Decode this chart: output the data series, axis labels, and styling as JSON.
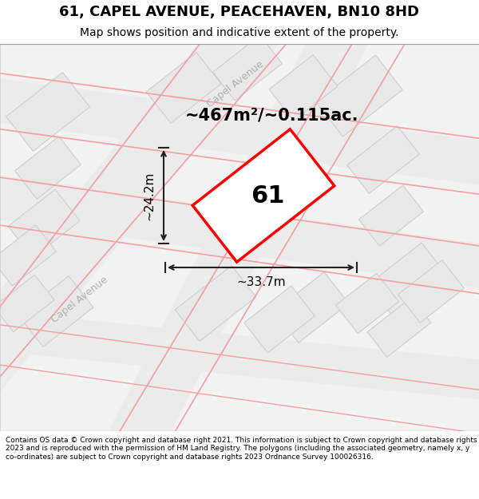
{
  "title": "61, CAPEL AVENUE, PEACEHAVEN, BN10 8HD",
  "subtitle": "Map shows position and indicative extent of the property.",
  "copyright": "Contains OS data © Crown copyright and database right 2021. This information is subject to Crown copyright and database rights 2023 and is reproduced with the permission of HM Land Registry. The polygons (including the associated geometry, namely x, y co-ordinates) are subject to Crown copyright and database rights 2023 Ordnance Survey 100026316.",
  "area_label": "~467m²/~0.115ac.",
  "dim_width": "~33.7m",
  "dim_height": "~24.2m",
  "property_number": "61",
  "bg_color": "#f5f5f5",
  "map_bg_color": "#f0f0f0",
  "road_color": "#f5a0a0",
  "building_color": "#e8e8e8",
  "building_edge_color": "#cccccc",
  "road_center_color": "#eeeeee",
  "property_color": "#ffffff",
  "property_edge_color": "#ff0000",
  "dim_color": "#222222",
  "text_color": "#333333",
  "street_label_color": "#aaaaaa",
  "figsize": [
    6.0,
    6.25
  ],
  "dpi": 100
}
